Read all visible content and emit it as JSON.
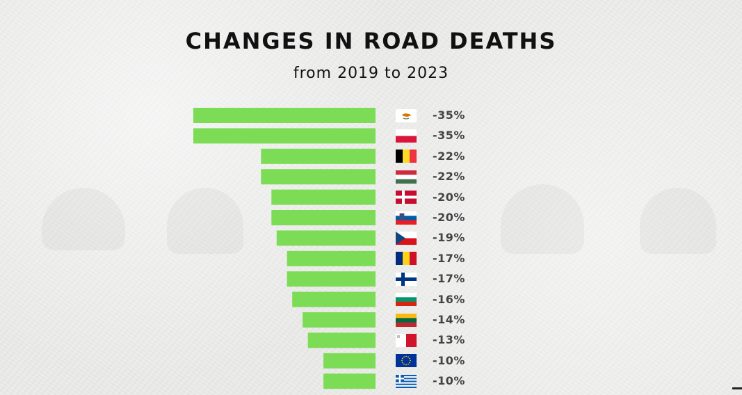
{
  "header": {
    "title": "CHANGES IN ROAD DEATHS",
    "subtitle": "from 2019 to 2023"
  },
  "colors": {
    "bar": "#7ddc55",
    "label": "#444444",
    "title": "#111111"
  },
  "chart_data": {
    "type": "bar",
    "orientation": "horizontal",
    "title": "CHANGES IN ROAD DEATHS",
    "subtitle": "from 2019 to 2023",
    "categories": [
      "cyprus-flag",
      "poland-flag",
      "belgium-flag",
      "hungary-flag",
      "denmark-flag",
      "slovenia-flag",
      "czechia-flag",
      "romania-flag",
      "finland-flag",
      "bulgaria-flag",
      "lithuania-flag",
      "malta-flag",
      "eu-flag",
      "greece-flag"
    ],
    "values": [
      -35,
      -35,
      -22,
      -22,
      -20,
      -20,
      -19,
      -17,
      -17,
      -16,
      -14,
      -13,
      -10,
      -10
    ],
    "labels": [
      "-35%",
      "-35%",
      "-22%",
      "-22%",
      "-20%",
      "-20%",
      "-19%",
      "-17%",
      "-17%",
      "-16%",
      "-14%",
      "-13%",
      "-10%",
      "-10%"
    ],
    "xlim": [
      -35,
      0
    ],
    "grid": false
  }
}
